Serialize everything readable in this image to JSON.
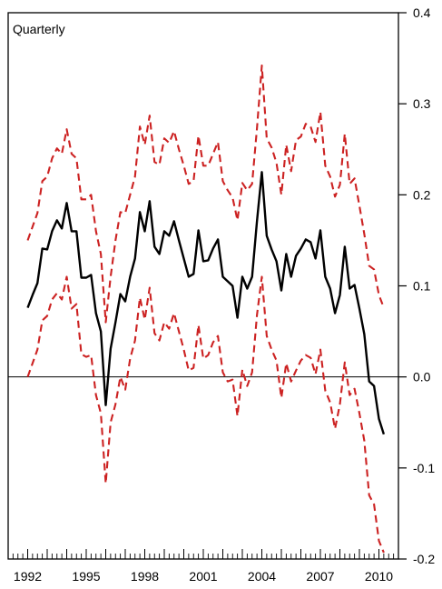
{
  "chart_data": {
    "type": "line",
    "panel_label": "Quarterly",
    "x_start": 1992.0,
    "x_step": 0.25,
    "xlim": [
      1991.0,
      2011.0
    ],
    "ylim": [
      -0.2,
      0.4
    ],
    "x_ticks": [
      1992,
      1995,
      1998,
      2001,
      2004,
      2007,
      2010
    ],
    "x_tick_labels": [
      "1992",
      "1995",
      "1998",
      "2001",
      "2004",
      "2007",
      "2010"
    ],
    "y_ticks": [
      -0.2,
      -0.1,
      0.0,
      0.1,
      0.2,
      0.3,
      0.4
    ],
    "y_tick_labels": [
      "-0.2",
      "-0.1",
      "0.0",
      "0.1",
      "0.2",
      "0.3",
      "0.4"
    ],
    "y_axis_side": "right",
    "reference_line": 0.0,
    "series": [
      {
        "role": "estimate",
        "color": "#000000",
        "dash": "solid",
        "values": [
          0.076,
          0.09,
          0.103,
          0.141,
          0.14,
          0.16,
          0.172,
          0.163,
          0.191,
          0.16,
          0.16,
          0.109,
          0.109,
          0.112,
          0.07,
          0.05,
          -0.031,
          0.031,
          0.06,
          0.091,
          0.083,
          0.11,
          0.13,
          0.181,
          0.16,
          0.193,
          0.143,
          0.135,
          0.16,
          0.155,
          0.171,
          0.15,
          0.13,
          0.11,
          0.113,
          0.161,
          0.127,
          0.128,
          0.141,
          0.151,
          0.11,
          0.105,
          0.1,
          0.065,
          0.11,
          0.097,
          0.11,
          0.171,
          0.225,
          0.155,
          0.14,
          0.127,
          0.095,
          0.135,
          0.11,
          0.133,
          0.141,
          0.151,
          0.148,
          0.13,
          0.161,
          0.11,
          0.097,
          0.07,
          0.09,
          0.143,
          0.097,
          0.101,
          0.075,
          0.047,
          -0.005,
          -0.01,
          -0.046,
          -0.063
        ]
      },
      {
        "role": "upper band",
        "color": "#cc2222",
        "dash": "dashed",
        "values": [
          0.15,
          0.165,
          0.18,
          0.215,
          0.22,
          0.24,
          0.251,
          0.245,
          0.272,
          0.245,
          0.24,
          0.195,
          0.195,
          0.2,
          0.16,
          0.135,
          0.06,
          0.11,
          0.15,
          0.181,
          0.18,
          0.2,
          0.22,
          0.275,
          0.255,
          0.287,
          0.236,
          0.233,
          0.262,
          0.257,
          0.27,
          0.25,
          0.232,
          0.212,
          0.215,
          0.265,
          0.232,
          0.232,
          0.245,
          0.258,
          0.215,
          0.205,
          0.197,
          0.172,
          0.213,
          0.205,
          0.212,
          0.273,
          0.342,
          0.262,
          0.252,
          0.235,
          0.2,
          0.255,
          0.226,
          0.26,
          0.264,
          0.278,
          0.275,
          0.258,
          0.291,
          0.232,
          0.22,
          0.198,
          0.211,
          0.267,
          0.212,
          0.218,
          0.188,
          0.157,
          0.122,
          0.118,
          0.09,
          0.076
        ]
      },
      {
        "role": "lower band",
        "color": "#cc2222",
        "dash": "dashed",
        "values": [
          0.0,
          0.015,
          0.03,
          0.062,
          0.067,
          0.085,
          0.092,
          0.085,
          0.11,
          0.075,
          0.08,
          0.025,
          0.022,
          0.024,
          -0.02,
          -0.04,
          -0.117,
          -0.05,
          -0.03,
          0.0,
          -0.014,
          0.02,
          0.04,
          0.087,
          0.063,
          0.098,
          0.048,
          0.04,
          0.06,
          0.053,
          0.07,
          0.05,
          0.03,
          0.007,
          0.01,
          0.057,
          0.02,
          0.024,
          0.038,
          0.045,
          0.005,
          -0.005,
          -0.003,
          -0.043,
          0.008,
          -0.01,
          0.005,
          0.068,
          0.11,
          0.045,
          0.03,
          0.018,
          -0.023,
          0.015,
          -0.005,
          0.007,
          0.018,
          0.024,
          0.021,
          0.003,
          0.03,
          -0.015,
          -0.028,
          -0.057,
          -0.03,
          0.016,
          -0.02,
          -0.013,
          -0.04,
          -0.07,
          -0.13,
          -0.14,
          -0.18,
          -0.193
        ]
      }
    ]
  }
}
